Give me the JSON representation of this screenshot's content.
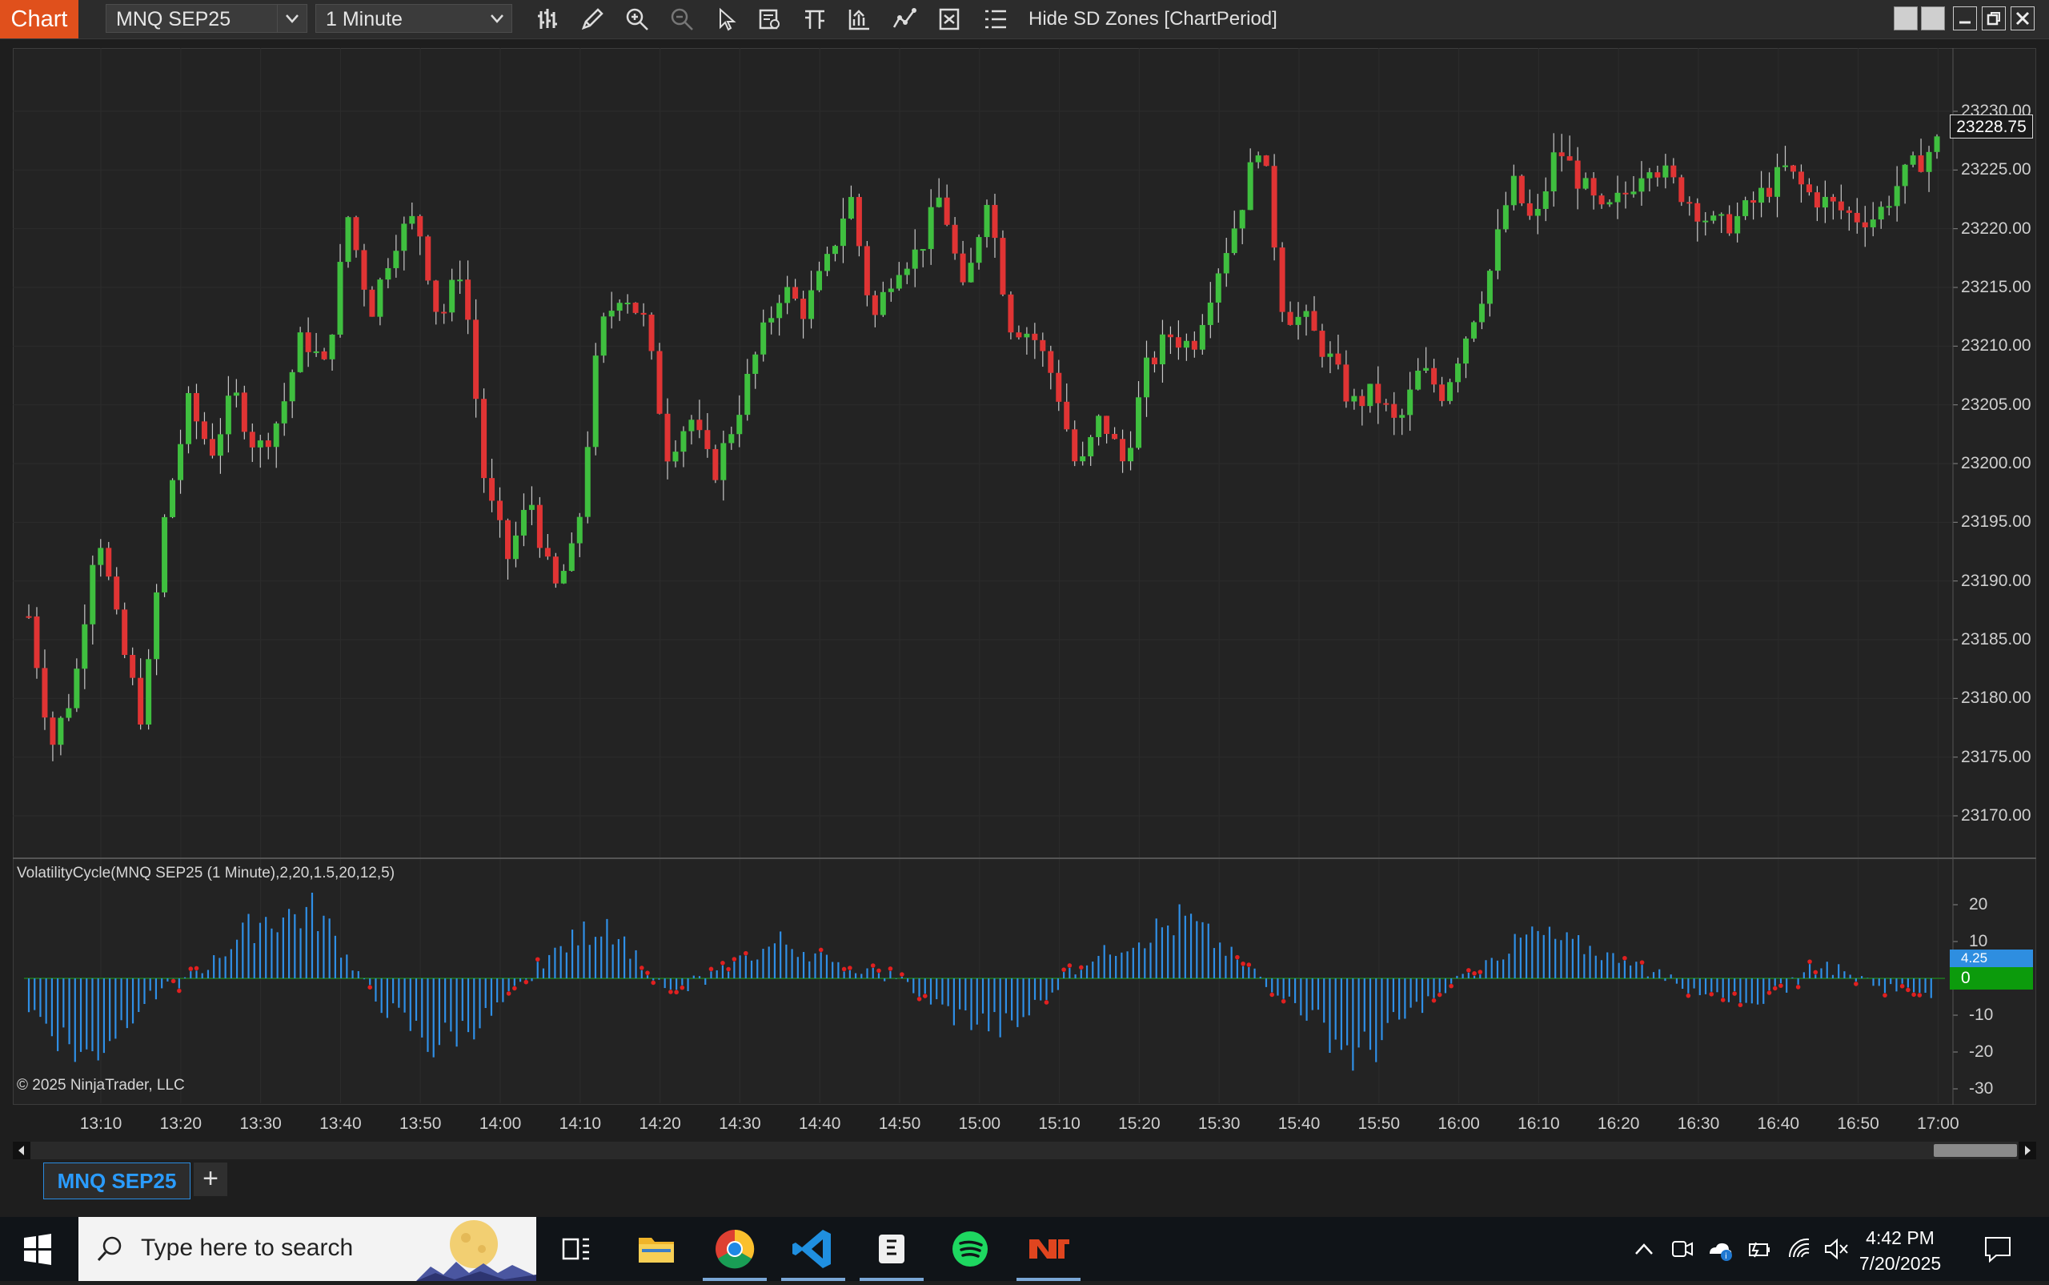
{
  "toolbar": {
    "chart_tab": "Chart",
    "instrument": "MNQ SEP25",
    "interval": "1 Minute",
    "hide_sd_zones": "Hide SD Zones [ChartPeriod]",
    "icons": [
      "bar-type-icon",
      "pencil-icon",
      "zoom-in-icon",
      "zoom-out-icon",
      "pointer-icon",
      "data-box-icon",
      "properties-icon",
      "strategies-icon",
      "indicators-icon",
      "templates-icon",
      "attach-order-icon"
    ]
  },
  "chart": {
    "indicator_label": "VolatilityCycle(MNQ SEP25 (1 Minute),2,20,1.5,20,12,5)",
    "copyright": "© 2025 NinjaTrader, LLC",
    "last_price": "23228.75",
    "indicator_value_a": "4.25",
    "indicator_value_b": "0",
    "colors": {
      "up": "#3fbf3f",
      "down": "#e03434",
      "histogram": "#2f8fe6",
      "signal": "#e02020",
      "background": "#232323",
      "grid": "#2c2c2c"
    }
  },
  "chart_data": {
    "type": "candlestick",
    "price_axis_labels": [
      "23230.00",
      "23225.00",
      "23220.00",
      "23215.00",
      "23210.00",
      "23205.00",
      "23200.00",
      "23195.00",
      "23190.00",
      "23185.00",
      "23180.00",
      "23175.00",
      "23170.00"
    ],
    "indicator_axis_labels": [
      "20",
      "10",
      "0",
      "-10",
      "-20",
      "-30"
    ],
    "time_labels": [
      "13:10",
      "13:20",
      "13:30",
      "13:40",
      "13:50",
      "14:00",
      "14:10",
      "14:20",
      "14:30",
      "14:40",
      "14:50",
      "15:00",
      "15:10",
      "15:20",
      "15:30",
      "15:40",
      "15:50",
      "16:00",
      "16:10",
      "16:20",
      "16:30",
      "16:40",
      "16:50",
      "17:00"
    ],
    "price_path": [
      [
        0,
        23187
      ],
      [
        3,
        23176
      ],
      [
        6,
        23181
      ],
      [
        9,
        23195
      ],
      [
        12,
        23185
      ],
      [
        15,
        23178
      ],
      [
        18,
        23196
      ],
      [
        21,
        23205
      ],
      [
        24,
        23201
      ],
      [
        27,
        23206
      ],
      [
        30,
        23201
      ],
      [
        33,
        23204
      ],
      [
        36,
        23211
      ],
      [
        39,
        23208
      ],
      [
        42,
        23221
      ],
      [
        45,
        23213
      ],
      [
        48,
        23219
      ],
      [
        51,
        23221
      ],
      [
        54,
        23212
      ],
      [
        57,
        23217
      ],
      [
        60,
        23198
      ],
      [
        63,
        23192
      ],
      [
        66,
        23197
      ],
      [
        69,
        23189
      ],
      [
        72,
        23193
      ],
      [
        75,
        23211
      ],
      [
        78,
        23215
      ],
      [
        81,
        23212
      ],
      [
        84,
        23201
      ],
      [
        87,
        23204
      ],
      [
        90,
        23199
      ],
      [
        93,
        23204
      ],
      [
        96,
        23210
      ],
      [
        99,
        23215
      ],
      [
        102,
        23213
      ],
      [
        105,
        23217
      ],
      [
        108,
        23223
      ],
      [
        111,
        23212
      ],
      [
        114,
        23217
      ],
      [
        117,
        23218
      ],
      [
        120,
        23223
      ],
      [
        123,
        23214
      ],
      [
        126,
        23223
      ],
      [
        129,
        23212
      ],
      [
        132,
        23211
      ],
      [
        135,
        23207
      ],
      [
        138,
        23199
      ],
      [
        141,
        23204
      ],
      [
        144,
        23200
      ],
      [
        147,
        23208
      ],
      [
        150,
        23211
      ],
      [
        153,
        23210
      ],
      [
        156,
        23216
      ],
      [
        159,
        23221
      ],
      [
        162,
        23228
      ],
      [
        165,
        23213
      ],
      [
        168,
        23212
      ],
      [
        171,
        23209
      ],
      [
        174,
        23205
      ],
      [
        177,
        23206
      ],
      [
        180,
        23203
      ],
      [
        183,
        23208
      ],
      [
        186,
        23206
      ],
      [
        189,
        23211
      ],
      [
        192,
        23216
      ],
      [
        195,
        23224
      ],
      [
        198,
        23220
      ],
      [
        201,
        23227
      ],
      [
        204,
        23224
      ],
      [
        207,
        23221
      ],
      [
        210,
        23223
      ],
      [
        213,
        23226
      ],
      [
        216,
        23224
      ],
      [
        219,
        23222
      ],
      [
        222,
        23220
      ],
      [
        225,
        23221
      ],
      [
        228,
        23223
      ],
      [
        231,
        23225
      ],
      [
        234,
        23223
      ],
      [
        237,
        23222
      ],
      [
        240,
        23221
      ],
      [
        243,
        23221
      ],
      [
        246,
        23224
      ],
      [
        249,
        23226
      ],
      [
        252,
        23228
      ]
    ],
    "indicator_path": [
      [
        0,
        -8
      ],
      [
        10,
        -22
      ],
      [
        20,
        -6
      ],
      [
        30,
        2
      ],
      [
        40,
        16
      ],
      [
        50,
        18
      ],
      [
        60,
        -6
      ],
      [
        70,
        -18
      ],
      [
        80,
        -10
      ],
      [
        90,
        6
      ],
      [
        100,
        16
      ],
      [
        110,
        -4
      ],
      [
        120,
        2
      ],
      [
        130,
        10
      ],
      [
        140,
        4
      ],
      [
        150,
        0
      ],
      [
        160,
        -10
      ],
      [
        170,
        -14
      ],
      [
        180,
        2
      ],
      [
        190,
        10
      ],
      [
        200,
        16
      ],
      [
        210,
        4
      ],
      [
        220,
        -8
      ],
      [
        230,
        -22
      ],
      [
        240,
        -8
      ],
      [
        250,
        2
      ],
      [
        260,
        12
      ],
      [
        270,
        8
      ],
      [
        280,
        2
      ],
      [
        290,
        -4
      ],
      [
        300,
        -6
      ],
      [
        310,
        4
      ],
      [
        320,
        -2
      ],
      [
        330,
        -4
      ]
    ]
  },
  "tabs": {
    "instrument_tab": "MNQ SEP25",
    "add_tab": "+"
  },
  "taskbar": {
    "search_placeholder": "Type here to search",
    "time": "4:42 PM",
    "date": "7/20/2025"
  }
}
